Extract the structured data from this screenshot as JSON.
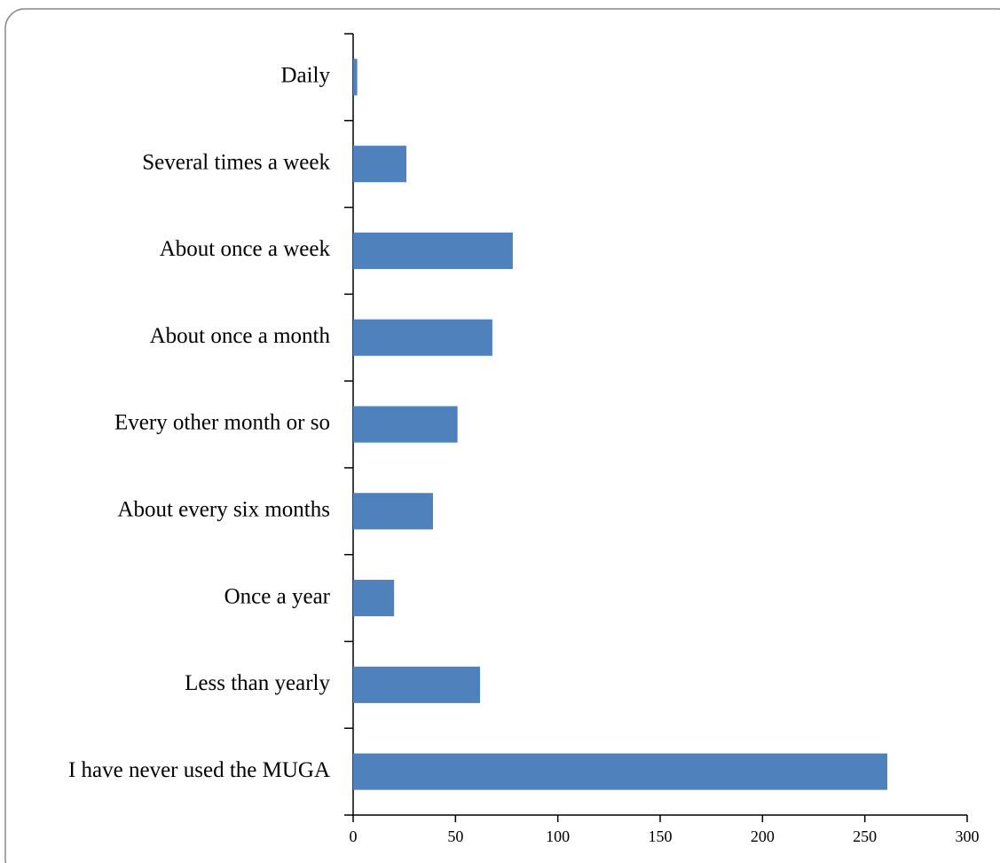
{
  "chart_data": {
    "type": "bar",
    "orientation": "horizontal",
    "categories": [
      "Daily",
      "Several times a week",
      "About once a week",
      "About once a month",
      "Every other month or so",
      "About every six months",
      "Once a year",
      "Less than yearly",
      "I have never used the MUGA"
    ],
    "values": [
      2,
      26,
      78,
      68,
      51,
      39,
      20,
      62,
      261
    ],
    "color": "#4f81bd",
    "xlim": [
      0,
      300
    ],
    "xticks": [
      0,
      50,
      100,
      150,
      200,
      250,
      300
    ],
    "grid": false
  }
}
